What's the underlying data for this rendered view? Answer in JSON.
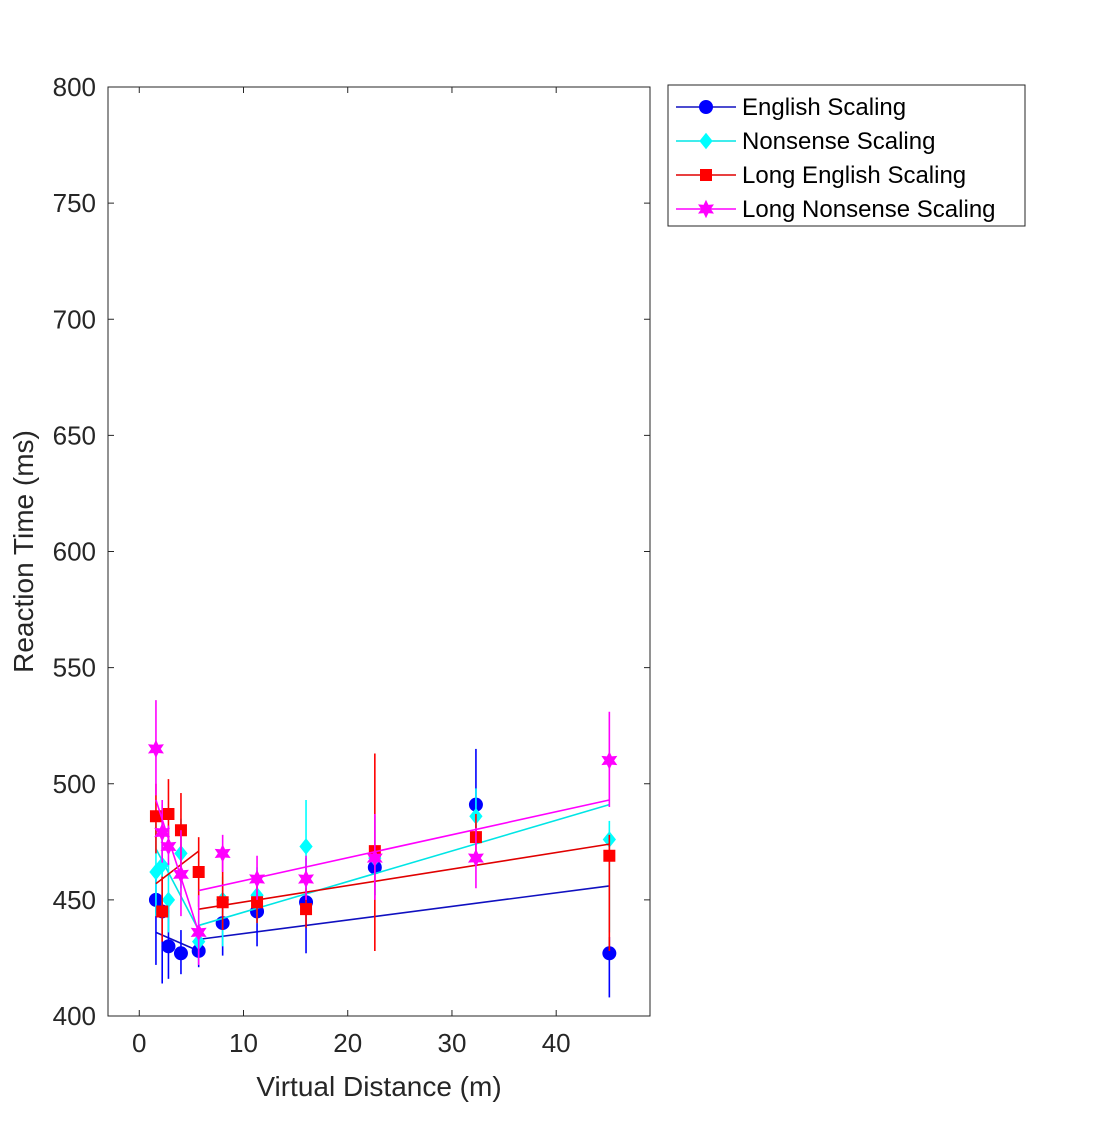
{
  "chart_data": {
    "type": "scatter",
    "xlabel": "Virtual Distance (m)",
    "ylabel": "Reaction Time (ms)",
    "xlim": [
      -3,
      49
    ],
    "ylim": [
      400,
      800
    ],
    "xticks": [
      0,
      10,
      20,
      30,
      40
    ],
    "yticks": [
      400,
      450,
      500,
      550,
      600,
      650,
      700,
      750,
      800
    ],
    "grid": false,
    "legend_placement": "outside-top-right",
    "series": [
      {
        "name": "English Scaling",
        "color": "#0000ff",
        "line_color": "#1010c0",
        "marker": "circle",
        "points": [
          {
            "x": 1.6,
            "y": 450,
            "lo": 422,
            "hi": 460
          },
          {
            "x": 2.2,
            "y": 445,
            "lo": 414,
            "hi": 476
          },
          {
            "x": 2.8,
            "y": 430,
            "lo": 416,
            "hi": 448
          },
          {
            "x": 4.0,
            "y": 427,
            "lo": 418,
            "hi": 437
          },
          {
            "x": 5.7,
            "y": 428,
            "lo": 421,
            "hi": 435
          },
          {
            "x": 8.0,
            "y": 440,
            "lo": 426,
            "hi": 447
          },
          {
            "x": 11.3,
            "y": 445,
            "lo": 430,
            "hi": 457
          },
          {
            "x": 16.0,
            "y": 449,
            "lo": 427,
            "hi": 468
          },
          {
            "x": 22.6,
            "y": 464,
            "lo": 452,
            "hi": 472
          },
          {
            "x": 32.3,
            "y": 491,
            "lo": 474,
            "hi": 515
          },
          {
            "x": 45.1,
            "y": 427,
            "lo": 408,
            "hi": 434
          }
        ],
        "fit_segments": [
          [
            {
              "x": 1.6,
              "y": 436
            },
            {
              "x": 5.7,
              "y": 428
            }
          ],
          [
            {
              "x": 5.7,
              "y": 433
            },
            {
              "x": 45.1,
              "y": 456
            }
          ]
        ]
      },
      {
        "name": "Nonsense Scaling",
        "color": "#00ffff",
        "line_color": "#00e5e5",
        "marker": "diamond",
        "points": [
          {
            "x": 1.6,
            "y": 462,
            "lo": 443,
            "hi": 483
          },
          {
            "x": 2.2,
            "y": 465,
            "lo": 437,
            "hi": 491
          },
          {
            "x": 2.8,
            "y": 450,
            "lo": 436,
            "hi": 466
          },
          {
            "x": 4.0,
            "y": 470,
            "lo": 455,
            "hi": 485
          },
          {
            "x": 5.7,
            "y": 432,
            "lo": 424,
            "hi": 441
          },
          {
            "x": 8.0,
            "y": 450,
            "lo": 430,
            "hi": 460
          },
          {
            "x": 11.3,
            "y": 452,
            "lo": 440,
            "hi": 464
          },
          {
            "x": 16.0,
            "y": 473,
            "lo": 453,
            "hi": 493
          },
          {
            "x": 22.6,
            "y": 468,
            "lo": 452,
            "hi": 486
          },
          {
            "x": 32.3,
            "y": 486,
            "lo": 474,
            "hi": 498
          },
          {
            "x": 45.1,
            "y": 476,
            "lo": 436,
            "hi": 484
          }
        ],
        "fit_segments": [
          [
            {
              "x": 1.6,
              "y": 472
            },
            {
              "x": 5.7,
              "y": 437
            }
          ],
          [
            {
              "x": 5.7,
              "y": 439
            },
            {
              "x": 45.1,
              "y": 491
            }
          ]
        ]
      },
      {
        "name": "Long English Scaling",
        "color": "#ff0000",
        "line_color": "#e00000",
        "marker": "square",
        "points": [
          {
            "x": 1.6,
            "y": 486,
            "lo": 470,
            "hi": 500
          },
          {
            "x": 2.2,
            "y": 445,
            "lo": 432,
            "hi": 460
          },
          {
            "x": 2.8,
            "y": 487,
            "lo": 473,
            "hi": 502
          },
          {
            "x": 4.0,
            "y": 480,
            "lo": 464,
            "hi": 496
          },
          {
            "x": 5.7,
            "y": 462,
            "lo": 447,
            "hi": 477
          },
          {
            "x": 8.0,
            "y": 449,
            "lo": 437,
            "hi": 467
          },
          {
            "x": 11.3,
            "y": 449,
            "lo": 440,
            "hi": 458
          },
          {
            "x": 16.0,
            "y": 446,
            "lo": 438,
            "hi": 455
          },
          {
            "x": 22.6,
            "y": 471,
            "lo": 428,
            "hi": 513
          },
          {
            "x": 32.3,
            "y": 477,
            "lo": 468,
            "hi": 487
          },
          {
            "x": 45.1,
            "y": 469,
            "lo": 428,
            "hi": 478
          }
        ],
        "fit_segments": [
          [
            {
              "x": 1.6,
              "y": 457
            },
            {
              "x": 5.7,
              "y": 471
            }
          ],
          [
            {
              "x": 5.7,
              "y": 446
            },
            {
              "x": 45.1,
              "y": 474
            }
          ]
        ]
      },
      {
        "name": "Long Nonsense Scaling",
        "color": "#ff00ff",
        "line_color": "#ff00ff",
        "marker": "hexagram",
        "points": [
          {
            "x": 1.6,
            "y": 515,
            "lo": 495,
            "hi": 536
          },
          {
            "x": 2.2,
            "y": 479,
            "lo": 466,
            "hi": 493
          },
          {
            "x": 2.8,
            "y": 473,
            "lo": 465,
            "hi": 482
          },
          {
            "x": 4.0,
            "y": 461,
            "lo": 443,
            "hi": 480
          },
          {
            "x": 5.7,
            "y": 436,
            "lo": 422,
            "hi": 452
          },
          {
            "x": 8.0,
            "y": 470,
            "lo": 462,
            "hi": 478
          },
          {
            "x": 11.3,
            "y": 459,
            "lo": 450,
            "hi": 469
          },
          {
            "x": 16.0,
            "y": 459,
            "lo": 450,
            "hi": 469
          },
          {
            "x": 22.6,
            "y": 468,
            "lo": 450,
            "hi": 487
          },
          {
            "x": 32.3,
            "y": 468,
            "lo": 455,
            "hi": 481
          },
          {
            "x": 45.1,
            "y": 510,
            "lo": 490,
            "hi": 531
          }
        ],
        "fit_segments": [
          [
            {
              "x": 1.6,
              "y": 493
            },
            {
              "x": 5.7,
              "y": 436
            }
          ],
          [
            {
              "x": 5.7,
              "y": 454
            },
            {
              "x": 45.1,
              "y": 493
            }
          ]
        ]
      }
    ]
  }
}
